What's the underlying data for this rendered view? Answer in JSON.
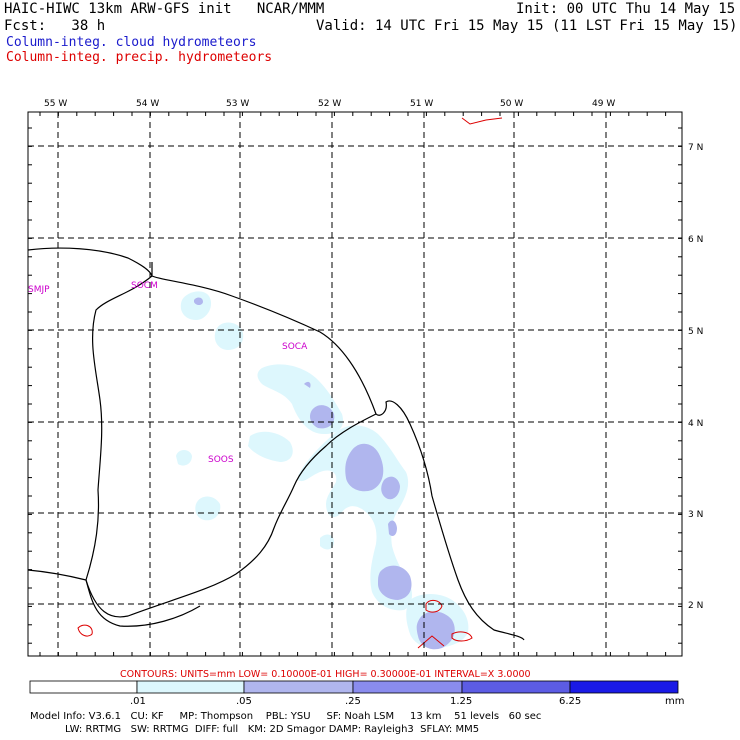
{
  "header": {
    "line1_left": "HAIC-HIWC 13km ARW-GFS init   NCAR/MMM",
    "line1_right": "Init: 00 UTC Thu 14 May 15",
    "line2_left": "Fcst:   38 h",
    "line2_right": "Valid: 14 UTC Fri 15 May 15 (11 LST Fri 15 May 15)",
    "field1": "Column-integ. cloud hydrometeors",
    "field2": "Column-integ. precip. hydrometeors",
    "field1_color": "#1a1acc",
    "field2_color": "#dd0000"
  },
  "map": {
    "lon_labels": [
      "55 W",
      "54 W",
      "53 W",
      "52 W",
      "51 W",
      "50 W",
      "49 W"
    ],
    "lat_labels": [
      "7 N",
      "6 N",
      "5 N",
      "4 N",
      "3 N",
      "2 N"
    ],
    "stations": [
      {
        "id": "SMJP"
      },
      {
        "id": "SOCM"
      },
      {
        "id": "SOCA"
      },
      {
        "id": "SOOS"
      }
    ],
    "station_color": "#cc00cc"
  },
  "contours_line": "CONTOURS:  UNITS=mm  LOW= 0.10000E-01  HIGH= 0.30000E-01  INTERVAL=X  3.0000",
  "colorbar": {
    "ticks": [
      ".01",
      ".05",
      ".25",
      "1.25",
      "6.25"
    ],
    "units": "mm",
    "colors": [
      "#ffffff",
      "#ddf7fd",
      "#b0b6ee",
      "#8a8cee",
      "#5c5ce4",
      "#1a1ae6"
    ]
  },
  "footer": {
    "line1": "Model Info: V3.6.1   CU: KF     MP: Thompson    PBL: YSU     SF: Noah LSM     13 km    51 levels   60 sec",
    "line2": "           LW: RRTMG   SW: RRTMG  DIFF: full   KM: 2D Smagor DAMP: Rayleigh3  SFLAY: MM5"
  }
}
